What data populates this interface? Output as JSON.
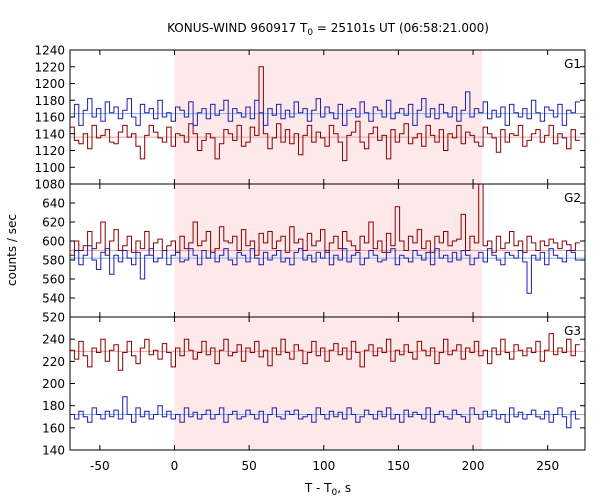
{
  "chart_data": {
    "type": "line",
    "title": "KONUS-WIND 960917 T",
    "title_sub": "0",
    "title_rest": " = 25101s UT (06:58:21.000)",
    "xlabel": "T - T",
    "xlabel_sub": "0",
    "xlabel_rest": ", s",
    "ylabel": "counts / sec",
    "xlim": [
      -70,
      275
    ],
    "xticks": [
      -50,
      0,
      50,
      100,
      150,
      200,
      250
    ],
    "xtick_labels": [
      "-50",
      "0",
      "50",
      "100",
      "150",
      "200",
      "250"
    ],
    "highlight": {
      "from": 0,
      "to": 206,
      "color": "#fde8ea"
    },
    "colors": {
      "red": "#8b0000",
      "blue": "#1f1fb4",
      "red_bg": "#e8a0a0",
      "blue_bg": "#7ab4e6"
    },
    "step": 2.944,
    "x_start": -70,
    "panels": [
      {
        "name": "G1",
        "ylim": [
          1080,
          1240
        ],
        "yticks": [
          1080,
          1100,
          1120,
          1140,
          1160,
          1180,
          1200,
          1220,
          1240
        ],
        "ytick_labels": [
          "1080",
          "1100",
          "1120",
          "1140",
          "1160",
          "1180",
          "1200",
          "1220",
          "1240"
        ],
        "background": {
          "red": 1136,
          "blue": 1164
        },
        "series": [
          {
            "color": "red",
            "values": [
              1148,
              1132,
              1128,
              1140,
              1122,
              1150,
              1135,
              1138,
              1145,
              1130,
              1128,
              1142,
              1150,
              1136,
              1140,
              1125,
              1110,
              1138,
              1150,
              1142,
              1135,
              1130,
              1148,
              1125,
              1140,
              1138,
              1130,
              1152,
              1140,
              1120,
              1132,
              1140,
              1135,
              1110,
              1128,
              1145,
              1140,
              1132,
              1150,
              1125,
              1130,
              1148,
              1138,
              1220,
              1140,
              1122,
              1135,
              1152,
              1130,
              1145,
              1128,
              1140,
              1115,
              1138,
              1150,
              1130,
              1142,
              1135,
              1125,
              1150,
              1140,
              1130,
              1108,
              1138,
              1142,
              1155,
              1130,
              1122,
              1140,
              1148,
              1132,
              1138,
              1110,
              1145,
              1130,
              1140,
              1152,
              1128,
              1135,
              1140,
              1125,
              1150,
              1138,
              1130,
              1145,
              1120,
              1140,
              1135,
              1150,
              1128,
              1142,
              1138,
              1130,
              1125,
              1148,
              1140,
              1135,
              1118,
              1145,
              1130,
              1140,
              1138,
              1150,
              1125,
              1132,
              1140,
              1145,
              1130,
              1138,
              1150,
              1128,
              1140,
              1135,
              1122,
              1145,
              1132
            ]
          },
          {
            "color": "blue",
            "values": [
              1160,
              1175,
              1150,
              1168,
              1182,
              1160,
              1170,
              1155,
              1178,
              1165,
              1172,
              1158,
              1168,
              1182,
              1160,
              1150,
              1175,
              1165,
              1170,
              1158,
              1180,
              1160,
              1165,
              1155,
              1172,
              1168,
              1160,
              1178,
              1150,
              1165,
              1170,
              1158,
              1175,
              1162,
              1168,
              1180,
              1155,
              1170,
              1165,
              1160,
              1172,
              1158,
              1180,
              1165,
              1150,
              1170,
              1162,
              1175,
              1158,
              1168,
              1160,
              1178,
              1165,
              1170,
              1155,
              1168,
              1182,
              1160,
              1172,
              1165,
              1158,
              1175,
              1150,
              1168,
              1170,
              1160,
              1178,
              1165,
              1155,
              1172,
              1168,
              1160,
              1180,
              1158,
              1165,
              1170,
              1162,
              1175,
              1150,
              1168,
              1182,
              1160,
              1170,
              1158,
              1175,
              1165,
              1160,
              1172,
              1155,
              1168,
              1190,
              1160,
              1170,
              1165,
              1178,
              1158,
              1168,
              1160,
              1172,
              1150,
              1175,
              1165,
              1160,
              1170,
              1158,
              1180,
              1165,
              1155,
              1172,
              1168,
              1160,
              1175,
              1150,
              1168,
              1165,
              1178
            ]
          }
        ]
      },
      {
        "name": "G2",
        "ylim": [
          520,
          660
        ],
        "yticks": [
          520,
          540,
          560,
          580,
          600,
          620,
          640
        ],
        "ytick_labels": [
          "520",
          "540",
          "560",
          "580",
          "600",
          "620",
          "640"
        ],
        "background": {
          "red": 590,
          "blue": 582
        },
        "series": [
          {
            "color": "red",
            "values": [
              585,
              600,
              590,
              595,
              610,
              592,
              598,
              620,
              585,
              600,
              612,
              590,
              595,
              605,
              588,
              600,
              592,
              610,
              585,
              598,
              602,
              590,
              595,
              600,
              588,
              605,
              592,
              598,
              620,
              595,
              600,
              610,
              588,
              592,
              615,
              600,
              598,
              605,
              590,
              612,
              595,
              600,
              585,
              608,
              598,
              610,
              592,
              600,
              605,
              588,
              615,
              598,
              602,
              590,
              608,
              595,
              600,
              612,
              588,
              598,
              605,
              592,
              610,
              600,
              595,
              590,
              605,
              598,
              620,
              592,
              600,
              588,
              608,
              595,
              636,
              600,
              590,
              605,
              598,
              612,
              592,
              600,
              588,
              605,
              598,
              610,
              595,
              600,
              602,
              628,
              590,
              605,
              598,
              660,
              595,
              600,
              588,
              605,
              592,
              598,
              610,
              595,
              600,
              588,
              605,
              598,
              590,
              600,
              595,
              602,
              598,
              592,
              600,
              596,
              590,
              598
            ]
          },
          {
            "color": "blue",
            "values": [
              580,
              590,
              575,
              585,
              595,
              580,
              570,
              588,
              592,
              565,
              585,
              578,
              590,
              582,
              575,
              588,
              560,
              585,
              592,
              578,
              582,
              590,
              575,
              585,
              588,
              578,
              580,
              592,
              585,
              575,
              590,
              582,
              588,
              578,
              585,
              592,
              580,
              575,
              588,
              585,
              578,
              592,
              582,
              575,
              588,
              580,
              585,
              590,
              578,
              582,
              575,
              588,
              592,
              580,
              585,
              578,
              588,
              582,
              590,
              575,
              585,
              580,
              592,
              578,
              585,
              588,
              575,
              582,
              590,
              585,
              578,
              580,
              588,
              592,
              575,
              585,
              582,
              578,
              590,
              585,
              580,
              588,
              575,
              592,
              582,
              585,
              578,
              588,
              580,
              590,
              585,
              575,
              582,
              588,
              578,
              592,
              585,
              580,
              575,
              588,
              585,
              582,
              590,
              578,
              545,
              585,
              580,
              588,
              575,
              592,
              585,
              582,
              578,
              590,
              588,
              580
            ]
          }
        ]
      },
      {
        "name": "G3",
        "ylim": [
          140,
          260
        ],
        "yticks": [
          140,
          160,
          180,
          200,
          220,
          240
        ],
        "ytick_labels": [
          "140",
          "160",
          "180",
          "200",
          "220",
          "240"
        ],
        "background": {
          "red": 229,
          "blue": 172
        },
        "series": [
          {
            "color": "red",
            "values": [
              230,
              222,
              238,
              225,
              215,
              232,
              228,
              240,
              220,
              230,
              235,
              212,
              228,
              238,
              225,
              218,
              232,
              240,
              226,
              230,
              222,
              236,
              228,
              215,
              232,
              225,
              240,
              230,
              222,
              228,
              238,
              226,
              232,
              218,
              230,
              240,
              225,
              228,
              235,
              220,
              232,
              228,
              238,
              224,
              230,
              216,
              232,
              226,
              240,
              228,
              222,
              235,
              230,
              218,
              228,
              238,
              225,
              232,
              220,
              230,
              236,
              226,
              232,
              222,
              238,
              228,
              215,
              230,
              235,
              225,
              232,
              228,
              240,
              220,
              230,
              226,
              235,
              228,
              222,
              238,
              230,
              225,
              232,
              218,
              228,
              240,
              226,
              230,
              235,
              222,
              232,
              228,
              238,
              225,
              230,
              218,
              232,
              226,
              240,
              228,
              222,
              235,
              230,
              225,
              232,
              228,
              238,
              220,
              230,
              245,
              226,
              232,
              228,
              240,
              225,
              235
            ]
          },
          {
            "color": "blue",
            "values": [
              172,
              168,
              175,
              170,
              165,
              178,
              172,
              168,
              175,
              170,
              176,
              168,
              188,
              172,
              165,
              178,
              170,
              175,
              168,
              172,
              180,
              170,
              175,
              168,
              172,
              165,
              178,
              170,
              174,
              168,
              172,
              176,
              168,
              172,
              178,
              165,
              172,
              175,
              168,
              170,
              176,
              172,
              168,
              175,
              165,
              172,
              178,
              170,
              168,
              175,
              172,
              176,
              168,
              170,
              172,
              165,
              178,
              172,
              168,
              175,
              170,
              174,
              168,
              178,
              172,
              165,
              170,
              176,
              172,
              168,
              175,
              170,
              178,
              168,
              172,
              165,
              176,
              170,
              174,
              172,
              168,
              178,
              165,
              172,
              175,
              170,
              168,
              176,
              172,
              170,
              165,
              178,
              172,
              168,
              175,
              170,
              176,
              168,
              172,
              165,
              178,
              170,
              174,
              168,
              172,
              176,
              170,
              168,
              175,
              165,
              172,
              178,
              170,
              160,
              175,
              168
            ]
          }
        ]
      }
    ]
  }
}
